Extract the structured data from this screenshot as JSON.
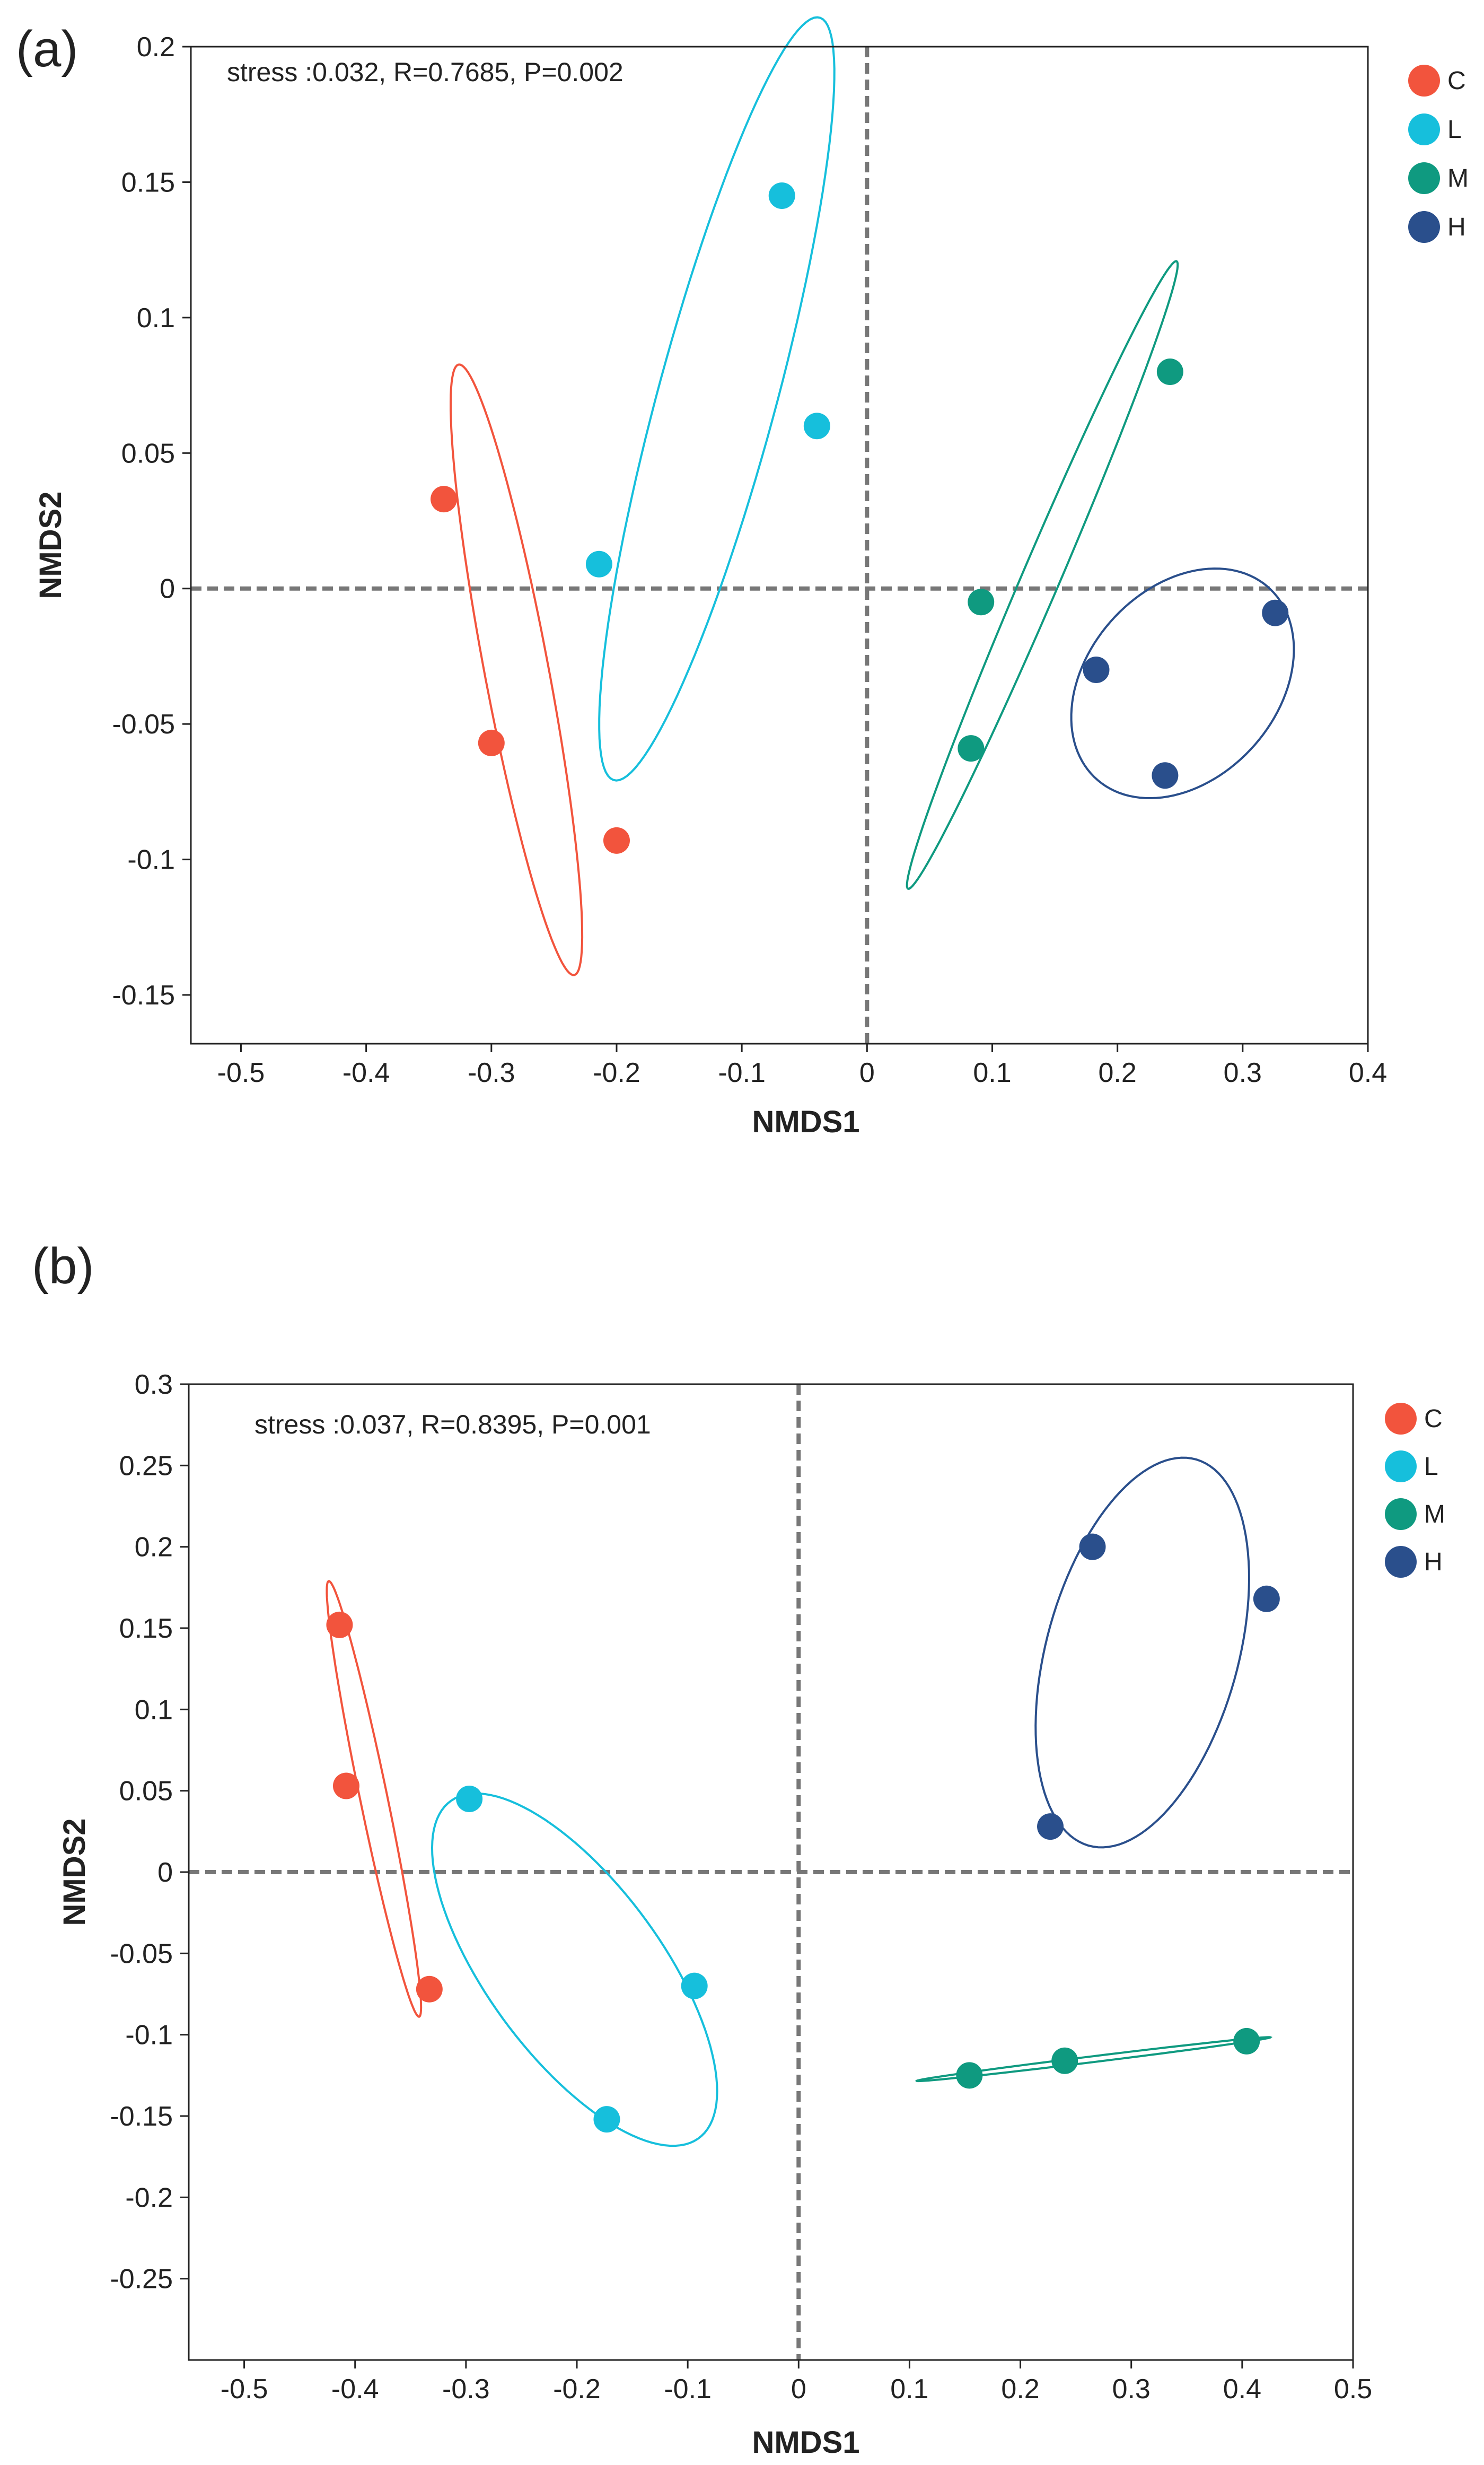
{
  "chart_data": [
    {
      "type": "scatter",
      "panel_label": "(a)",
      "annotation": "stress :0.032, R=0.7685, P=0.002",
      "xlabel": "NMDS1",
      "ylabel": "NMDS2",
      "xlim": [
        -0.54,
        0.4
      ],
      "ylim": [
        -0.168,
        0.2
      ],
      "xticks": [
        -0.5,
        -0.4,
        -0.3,
        -0.2,
        -0.1,
        0,
        0.1,
        0.2,
        0.3,
        0.4
      ],
      "xtick_labels": [
        "-0.5",
        "-0.4",
        "-0.3",
        "-0.2",
        "-0.1",
        "0",
        "0.1",
        "0.2",
        "0.3",
        "0.4"
      ],
      "yticks": [
        0.2,
        0.15,
        0.1,
        0.05,
        0,
        -0.05,
        -0.1,
        -0.15
      ],
      "ytick_labels": [
        "0.2",
        "0.15",
        "0.1",
        "0.05",
        "0",
        "-0.05",
        "-0.1",
        "-0.15"
      ],
      "reference_lines": {
        "x": 0,
        "y": 0
      },
      "legend": {
        "position": "right",
        "entries": [
          "C",
          "L",
          "M",
          "H"
        ]
      },
      "series": [
        {
          "name": "C",
          "color": "#f2543d",
          "points": [
            [
              -0.338,
              0.033
            ],
            [
              -0.3,
              -0.057
            ],
            [
              -0.2,
              -0.093
            ]
          ],
          "ellipse": {
            "cx": -0.28,
            "cy": -0.03,
            "rx": 0.122,
            "ry": 0.024,
            "angle_deg": -67
          }
        },
        {
          "name": "L",
          "color": "#16bfdc",
          "points": [
            [
              -0.068,
              0.145
            ],
            [
              -0.04,
              0.06
            ],
            [
              -0.214,
              0.009
            ]
          ],
          "ellipse": {
            "cx": -0.12,
            "cy": 0.07,
            "rx": 0.164,
            "ry": 0.042,
            "angle_deg": 58
          }
        },
        {
          "name": "M",
          "color": "#0f9a80",
          "points": [
            [
              0.242,
              0.08
            ],
            [
              0.091,
              -0.005
            ],
            [
              0.083,
              -0.059
            ]
          ],
          "ellipse": {
            "cx": 0.14,
            "cy": 0.005,
            "rx": 0.158,
            "ry": 0.012,
            "angle_deg": 47
          }
        },
        {
          "name": "H",
          "color": "#2a4f8c",
          "points": [
            [
              0.326,
              -0.009
            ],
            [
              0.183,
              -0.03
            ],
            [
              0.238,
              -0.069
            ]
          ],
          "ellipse": {
            "cx": 0.252,
            "cy": -0.035,
            "rx": 0.09,
            "ry": 0.04,
            "angle_deg": 10
          }
        }
      ]
    },
    {
      "type": "scatter",
      "panel_label": "(b)",
      "annotation": "stress :0.037, R=0.8395, P=0.001",
      "xlabel": "NMDS1",
      "ylabel": "NMDS2",
      "xlim": [
        -0.55,
        0.5
      ],
      "ylim": [
        -0.3,
        0.3
      ],
      "xticks": [
        -0.5,
        -0.4,
        -0.3,
        -0.2,
        -0.1,
        0,
        0.1,
        0.2,
        0.3,
        0.4,
        0.5
      ],
      "xtick_labels": [
        "-0.5",
        "-0.4",
        "-0.3",
        "-0.2",
        "-0.1",
        "0",
        "0.1",
        "0.2",
        "0.3",
        "0.4",
        "0.5"
      ],
      "yticks": [
        0.3,
        0.25,
        0.2,
        0.15,
        0.1,
        0.05,
        0,
        -0.05,
        -0.1,
        -0.15,
        -0.2,
        -0.25
      ],
      "ytick_labels": [
        "0.3",
        "0.25",
        "0.2",
        "0.15",
        "0.1",
        "0.05",
        "0",
        "-0.05",
        "-0.1",
        "-0.15",
        "-0.2",
        "-0.25"
      ],
      "reference_lines": {
        "x": 0,
        "y": 0
      },
      "legend": {
        "position": "right",
        "entries": [
          "C",
          "L",
          "M",
          "H"
        ]
      },
      "series": [
        {
          "name": "C",
          "color": "#f2543d",
          "points": [
            [
              -0.414,
              0.152
            ],
            [
              -0.408,
              0.053
            ],
            [
              -0.333,
              -0.072
            ]
          ],
          "ellipse": {
            "cx": -0.383,
            "cy": 0.045,
            "rx": 0.14,
            "ry": 0.012,
            "angle_deg": -73
          }
        },
        {
          "name": "L",
          "color": "#16bfdc",
          "points": [
            [
              -0.297,
              0.045
            ],
            [
              -0.094,
              -0.07
            ],
            [
              -0.173,
              -0.152
            ]
          ],
          "ellipse": {
            "cx": -0.202,
            "cy": -0.06,
            "rx": 0.155,
            "ry": 0.065,
            "angle_deg": -38
          }
        },
        {
          "name": "M",
          "color": "#0f9a80",
          "points": [
            [
              0.154,
              -0.125
            ],
            [
              0.24,
              -0.116
            ],
            [
              0.404,
              -0.104
            ]
          ],
          "ellipse": {
            "cx": 0.266,
            "cy": -0.115,
            "rx": 0.16,
            "ry": 0.0018,
            "angle_deg": 4.8
          }
        },
        {
          "name": "H",
          "color": "#2a4f8c",
          "points": [
            [
              0.265,
              0.2
            ],
            [
              0.422,
              0.168
            ],
            [
              0.227,
              0.028
            ]
          ],
          "ellipse": {
            "cx": 0.31,
            "cy": 0.135,
            "rx": 0.13,
            "ry": 0.082,
            "angle_deg": 60
          }
        }
      ]
    }
  ]
}
